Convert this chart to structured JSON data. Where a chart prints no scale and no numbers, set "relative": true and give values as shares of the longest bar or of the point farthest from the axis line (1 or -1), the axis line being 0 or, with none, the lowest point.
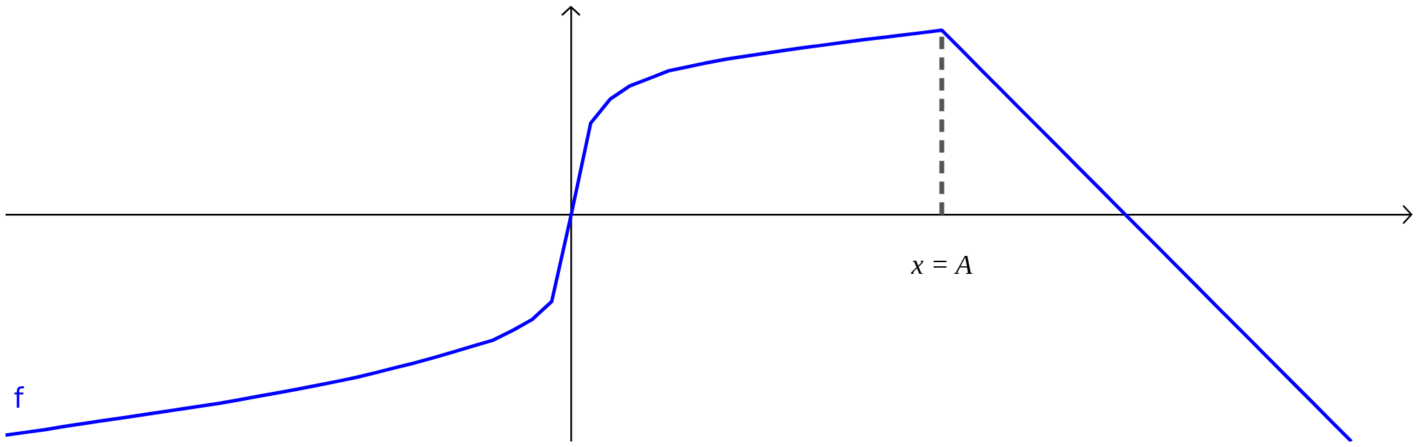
{
  "chart_data": {
    "type": "line",
    "relative": true,
    "legend": false,
    "marker": "none",
    "line_style": "solid",
    "categories": [
      null,
      null,
      null,
      null,
      null,
      null,
      null,
      null,
      null,
      null,
      null,
      null,
      null,
      null,
      null,
      null,
      null,
      null,
      null,
      null,
      null,
      null,
      null,
      null,
      null,
      null,
      null,
      null,
      null,
      null,
      null,
      null,
      null,
      null,
      null,
      null,
      null,
      null,
      null,
      null,
      null,
      null,
      null,
      null,
      null,
      null,
      null,
      null,
      null,
      null,
      null,
      null,
      null,
      null,
      null,
      null,
      null,
      null,
      null,
      null,
      null,
      null,
      null,
      null,
      null,
      null,
      null,
      null,
      null,
      null
    ],
    "series": [
      {
        "name": "f",
        "color": "#0000ff",
        "values": [
          -0.972,
          -0.96,
          -0.948,
          -0.934,
          -0.921,
          -0.908,
          -0.896,
          -0.883,
          -0.87,
          -0.857,
          -0.844,
          -0.831,
          -0.816,
          -0.8,
          -0.785,
          -0.769,
          -0.752,
          -0.735,
          -0.717,
          -0.696,
          -0.674,
          -0.653,
          -0.629,
          -0.604,
          -0.578,
          -0.553,
          -0.51,
          -0.462,
          -0.383,
          0,
          0.404,
          0.51,
          0.568,
          0.601,
          0.635,
          0.653,
          0.671,
          0.687,
          0.7,
          0.713,
          0.726,
          0.738,
          0.749,
          0.761,
          0.772,
          0.782,
          0.793,
          0.803,
          0.814,
          0.728,
          0.641,
          0.555,
          0.468,
          0.382,
          0.296,
          0.209,
          0.123,
          0.036,
          -0.05,
          -0.136,
          -0.223,
          -0.309,
          -0.396,
          -0.482,
          -0.568,
          -0.655,
          -0.741,
          -0.827,
          -0.914,
          -1
        ]
      }
    ],
    "ref_lines": [
      {
        "axis": "x",
        "label": "x = A",
        "color": "#555555",
        "line_style": "dashed"
      }
    ]
  }
}
